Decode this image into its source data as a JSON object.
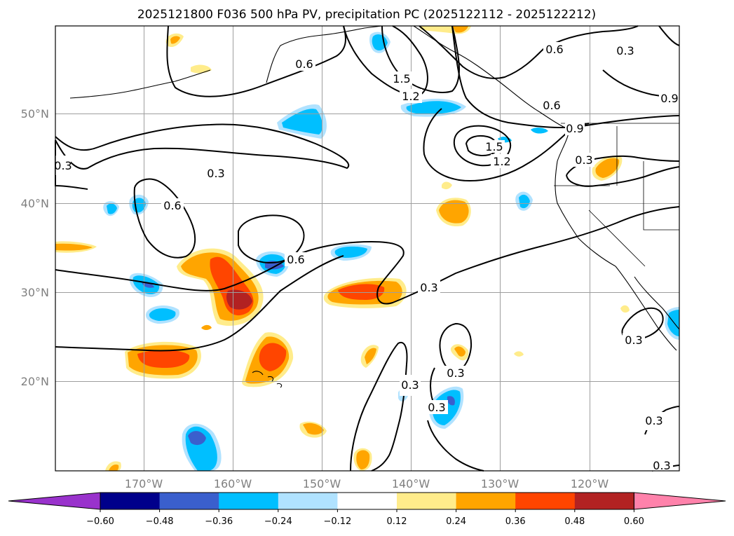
{
  "title": "2025121800 F036 500 hPa PV, precipitation PC (2025122112 - 2025122212)",
  "map": {
    "lat_labels": [
      "50°N",
      "40°N",
      "30°N",
      "20°N"
    ],
    "lon_labels": [
      "170°W",
      "160°W",
      "150°W",
      "140°W",
      "130°W",
      "120°W"
    ],
    "contour_labels": [
      "0.6",
      "1.5",
      "1.2",
      "0.3",
      "0.6",
      "0.9",
      "0.6",
      "0.9",
      "1.5",
      "1.2",
      "0.3",
      "0.3",
      "0.6",
      "0.6",
      "0.3",
      "0.3",
      "0.3",
      "0.3",
      "0.3",
      "0.3",
      "0.3",
      "0.3"
    ]
  },
  "colorbar": {
    "tick_labels": [
      "−0.60",
      "−0.48",
      "−0.36",
      "−0.24",
      "−0.12",
      "0.12",
      "0.24",
      "0.36",
      "0.48",
      "0.60"
    ],
    "colors": [
      "#9932cc",
      "#00008b",
      "#3a5fcd",
      "#00bfff",
      "#b0e2ff",
      "#ffffff",
      "#ffec8b",
      "#ffa500",
      "#ff4500",
      "#b22222",
      "#ff82ab"
    ]
  }
}
